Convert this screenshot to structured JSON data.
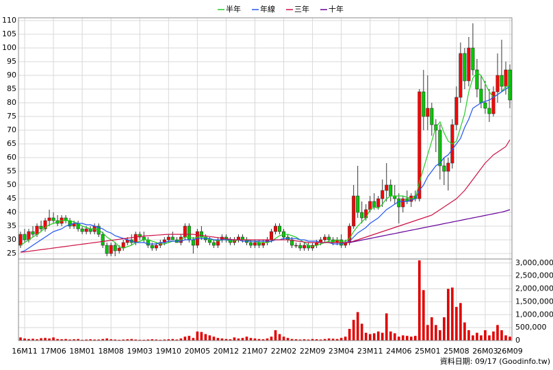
{
  "chart_data": [
    {
      "type": "candlestick",
      "categories": [
        null,
        "16M11",
        null,
        null,
        null,
        null,
        null,
        null,
        "17M06",
        null,
        null,
        null,
        null,
        null,
        null,
        "18M01",
        null,
        null,
        null,
        null,
        null,
        null,
        "18M08",
        null,
        null,
        null,
        null,
        null,
        null,
        "19M03",
        null,
        null,
        null,
        null,
        null,
        null,
        "19M10",
        null,
        null,
        null,
        null,
        null,
        null,
        "20M05",
        null,
        null,
        null,
        null,
        null,
        null,
        "20M12",
        null,
        null,
        null,
        null,
        null,
        null,
        "21M07",
        null,
        null,
        null,
        null,
        null,
        null,
        "22M02",
        null,
        null,
        null,
        null,
        null,
        null,
        "22M09",
        null,
        null,
        null,
        null,
        null,
        null,
        "23M04",
        null,
        null,
        null,
        null,
        null,
        null,
        "23M11",
        null,
        null,
        null,
        null,
        null,
        null,
        "24M06",
        null,
        null,
        null,
        null,
        null,
        null,
        "25M01",
        null,
        null,
        null,
        null,
        null,
        null,
        "25M08",
        null,
        null,
        null,
        null,
        null,
        null,
        "26M03",
        null,
        null,
        null,
        null,
        null,
        "26M09"
      ],
      "open": [
        28,
        32,
        30,
        33,
        32,
        35,
        34,
        37,
        38,
        37,
        36,
        38,
        37,
        35,
        36,
        34,
        33,
        34,
        33,
        35,
        32,
        28,
        25,
        28,
        26,
        27,
        29,
        30,
        29,
        32,
        31,
        30,
        28,
        27,
        28,
        29,
        30,
        31,
        30,
        29,
        31,
        35,
        30,
        28,
        33,
        31,
        30,
        29,
        28,
        30,
        31,
        30,
        29,
        30,
        31,
        30,
        29,
        28,
        29,
        28,
        29,
        30,
        33,
        35,
        33,
        31,
        30,
        28,
        28,
        27,
        28,
        27,
        28,
        29,
        30,
        31,
        30,
        29,
        30,
        28,
        29,
        35,
        46,
        40,
        38,
        41,
        44,
        42,
        45,
        48,
        50,
        46,
        45,
        42,
        45,
        44,
        46,
        45,
        84,
        75,
        78,
        72,
        70,
        57,
        55,
        58,
        72,
        82,
        98,
        88,
        100,
        92,
        85,
        80,
        78,
        76,
        84,
        90,
        86,
        92
      ],
      "high": [
        33,
        34,
        34,
        35,
        36,
        37,
        38,
        41,
        40,
        39,
        39,
        39,
        38,
        37,
        37,
        35,
        35,
        35,
        36,
        36,
        33,
        29,
        29,
        29,
        28,
        30,
        31,
        32,
        33,
        33,
        33,
        31,
        29,
        29,
        30,
        31,
        32,
        33,
        31,
        32,
        36,
        36,
        31,
        34,
        35,
        32,
        31,
        30,
        31,
        32,
        32,
        31,
        31,
        32,
        32,
        31,
        30,
        30,
        30,
        30,
        31,
        34,
        36,
        36,
        34,
        32,
        31,
        29,
        29,
        29,
        29,
        29,
        30,
        31,
        32,
        32,
        31,
        31,
        32,
        30,
        36,
        50,
        57,
        44,
        43,
        46,
        47,
        46,
        52,
        58,
        52,
        50,
        47,
        46,
        48,
        47,
        48,
        85,
        92,
        90,
        80,
        74,
        72,
        60,
        60,
        74,
        86,
        102,
        100,
        104,
        109,
        96,
        90,
        88,
        85,
        86,
        98,
        103,
        95,
        94
      ],
      "low": [
        27,
        29,
        29,
        31,
        31,
        33,
        33,
        35,
        36,
        35,
        35,
        36,
        34,
        34,
        33,
        32,
        32,
        32,
        32,
        31,
        27,
        24,
        24,
        24,
        25,
        26,
        28,
        28,
        28,
        30,
        29,
        27,
        26,
        26,
        27,
        28,
        29,
        30,
        29,
        28,
        30,
        29,
        25,
        27,
        30,
        29,
        28,
        27,
        27,
        29,
        29,
        28,
        28,
        29,
        29,
        28,
        27,
        27,
        27,
        27,
        28,
        29,
        32,
        32,
        30,
        29,
        27,
        27,
        26,
        26,
        26,
        26,
        27,
        28,
        29,
        29,
        28,
        28,
        27,
        27,
        28,
        34,
        38,
        36,
        37,
        40,
        41,
        41,
        42,
        44,
        44,
        43,
        36,
        40,
        43,
        42,
        44,
        44,
        70,
        70,
        68,
        62,
        52,
        50,
        48,
        56,
        70,
        80,
        85,
        86,
        90,
        82,
        78,
        76,
        73,
        75,
        80,
        84,
        83,
        78
      ],
      "close": [
        32,
        30,
        33,
        32,
        35,
        34,
        37,
        38,
        37,
        36,
        38,
        37,
        35,
        36,
        34,
        33,
        34,
        33,
        35,
        32,
        28,
        25,
        28,
        26,
        27,
        29,
        30,
        29,
        32,
        31,
        30,
        28,
        27,
        28,
        29,
        30,
        31,
        30,
        29,
        31,
        35,
        30,
        28,
        33,
        31,
        30,
        29,
        28,
        30,
        31,
        30,
        29,
        30,
        31,
        30,
        29,
        28,
        29,
        28,
        29,
        30,
        33,
        35,
        33,
        31,
        30,
        28,
        28,
        27,
        28,
        27,
        28,
        29,
        30,
        31,
        30,
        29,
        30,
        28,
        29,
        35,
        46,
        40,
        38,
        41,
        44,
        42,
        45,
        48,
        50,
        46,
        45,
        42,
        45,
        44,
        46,
        45,
        84,
        75,
        78,
        72,
        70,
        57,
        55,
        58,
        72,
        82,
        98,
        88,
        100,
        92,
        85,
        80,
        78,
        76,
        84,
        90,
        86,
        92,
        81
      ],
      "up_color": "#ff0000",
      "down_color": "#00c800",
      "series": [
        {
          "name": "半年",
          "color": "#22cc22",
          "values": [
            28,
            29,
            30,
            31,
            32,
            33,
            34.5,
            35.5,
            36,
            36.5,
            37,
            37,
            37,
            36.5,
            36,
            35,
            34.5,
            34,
            34,
            33.5,
            32.5,
            31,
            30,
            29,
            27.5,
            27,
            27.5,
            28,
            29,
            29.5,
            30,
            30,
            29.5,
            29,
            28.5,
            28.5,
            29,
            29.5,
            29.5,
            30,
            31,
            31,
            30.5,
            31,
            31,
            31,
            30,
            30,
            29.5,
            30,
            30,
            29.5,
            29.5,
            30,
            30,
            30,
            29.5,
            29.5,
            29,
            29,
            29,
            29.5,
            30.5,
            31.5,
            32,
            32,
            31.5,
            31,
            30,
            29,
            28,
            27.5,
            28,
            28.5,
            29,
            29.5,
            29.5,
            30,
            29.5,
            29.5,
            30.5,
            33,
            35,
            36.5,
            38,
            41,
            42,
            41.5,
            43,
            45,
            46,
            46,
            46,
            46,
            45.5,
            45,
            45,
            51,
            56,
            61,
            66,
            71,
            73,
            69,
            66,
            65,
            66,
            71,
            76,
            84,
            89,
            91,
            90,
            87,
            84,
            82,
            83,
            84,
            86,
            86
          ]
        },
        {
          "name": "年線",
          "color": "#2255ee",
          "values": [
            25.5,
            26,
            27,
            28,
            29,
            30,
            31,
            32,
            33,
            33.5,
            34,
            35,
            35.5,
            36,
            36,
            36,
            35.5,
            35.5,
            35,
            34.5,
            34,
            33,
            32.5,
            31.5,
            31,
            30.5,
            30,
            29.5,
            29,
            29,
            29,
            28.5,
            28.5,
            28.5,
            29,
            29,
            29.5,
            29.5,
            29.5,
            29.5,
            30,
            30,
            30,
            30.5,
            30.5,
            30.5,
            30.5,
            30,
            30,
            30,
            30,
            30,
            30,
            30,
            29.5,
            29.5,
            29.5,
            29.5,
            29.5,
            29.5,
            29.5,
            29.5,
            30,
            30,
            30.5,
            30.5,
            30.5,
            30.5,
            30,
            30,
            29.5,
            29.5,
            29.5,
            29,
            29,
            29,
            28.5,
            28.5,
            28.5,
            29,
            29.5,
            31,
            32.5,
            33.5,
            34.5,
            36,
            37,
            38,
            39.5,
            41,
            42,
            43,
            44,
            44,
            44,
            44.5,
            45,
            48,
            50,
            53,
            55,
            57,
            58,
            60,
            61,
            63,
            65,
            67,
            71,
            74,
            78,
            79,
            80,
            80.5,
            81,
            82,
            83,
            84,
            85,
            86
          ]
        },
        {
          "name": "三年",
          "color": "#cc1144",
          "values": [
            25.5,
            25.6,
            25.8,
            26,
            26.2,
            26.4,
            26.6,
            26.8,
            27,
            27.2,
            27.4,
            27.6,
            27.8,
            28,
            28.2,
            28.4,
            28.6,
            28.8,
            29,
            29.2,
            29.4,
            29.6,
            29.8,
            30,
            30.2,
            30.4,
            30.6,
            30.8,
            31,
            31.2,
            31.4,
            31.5,
            31.6,
            31.7,
            31.8,
            31.9,
            32,
            32,
            32,
            32,
            32,
            32,
            32,
            31.8,
            31.6,
            31.4,
            31.2,
            31,
            30.8,
            30.6,
            30.4,
            30.2,
            30,
            30,
            30,
            30,
            30,
            30,
            30,
            30,
            30,
            30,
            30,
            30,
            30,
            30,
            29.8,
            29.6,
            29.4,
            29.2,
            29,
            29,
            29,
            29,
            29,
            29,
            29,
            29,
            29,
            29,
            29,
            29.5,
            30,
            30.5,
            31,
            31.5,
            32,
            32.5,
            33,
            33.5,
            34,
            34.5,
            35,
            35.5,
            36,
            36.5,
            37,
            37.5,
            38,
            38.5,
            39,
            40,
            41,
            42,
            43,
            44,
            45,
            46.5,
            48,
            50,
            52,
            54,
            56,
            58,
            59.5,
            61,
            62,
            63,
            64,
            66.5
          ]
        },
        {
          "name": "十年",
          "color": "#660099",
          "values": [
            null,
            null,
            null,
            null,
            null,
            null,
            null,
            null,
            null,
            null,
            null,
            null,
            null,
            null,
            null,
            null,
            null,
            null,
            null,
            null,
            null,
            null,
            null,
            null,
            null,
            null,
            null,
            null,
            null,
            null,
            null,
            null,
            null,
            null,
            null,
            null,
            null,
            null,
            null,
            null,
            null,
            null,
            null,
            null,
            null,
            null,
            null,
            null,
            null,
            null,
            null,
            null,
            null,
            null,
            null,
            null,
            null,
            null,
            null,
            null,
            null,
            null,
            null,
            null,
            null,
            null,
            null,
            null,
            null,
            null,
            null,
            null,
            null,
            null,
            null,
            null,
            null,
            null,
            null,
            null,
            29,
            29.3,
            29.6,
            29.9,
            30.2,
            30.5,
            30.8,
            31.1,
            31.4,
            31.7,
            32,
            32.3,
            32.6,
            32.9,
            33.2,
            33.5,
            33.8,
            34.1,
            34.4,
            34.7,
            35,
            35.3,
            35.6,
            35.9,
            36.2,
            36.5,
            36.8,
            37.1,
            37.4,
            37.7,
            38,
            38.3,
            38.6,
            38.9,
            39.2,
            39.5,
            39.8,
            40.1,
            40.5,
            41
          ]
        }
      ],
      "ylim": [
        23,
        111
      ],
      "yticks": [
        25,
        30,
        35,
        40,
        45,
        50,
        55,
        60,
        65,
        70,
        75,
        80,
        85,
        90,
        95,
        100,
        105,
        110
      ],
      "grid": true,
      "legend": "top",
      "footer": "資料日期: 09/17 (Goodinfo.tw)"
    },
    {
      "type": "bar",
      "color": "#e00000",
      "values": [
        120000,
        80000,
        60000,
        70000,
        50000,
        90000,
        100000,
        80000,
        120000,
        60000,
        50000,
        60000,
        40000,
        50000,
        60000,
        30000,
        40000,
        50000,
        40000,
        40000,
        60000,
        80000,
        50000,
        40000,
        30000,
        40000,
        50000,
        60000,
        40000,
        30000,
        30000,
        40000,
        50000,
        40000,
        30000,
        40000,
        50000,
        60000,
        40000,
        80000,
        150000,
        180000,
        100000,
        350000,
        330000,
        250000,
        200000,
        150000,
        100000,
        80000,
        60000,
        50000,
        120000,
        80000,
        100000,
        150000,
        100000,
        80000,
        60000,
        50000,
        80000,
        150000,
        400000,
        250000,
        150000,
        100000,
        60000,
        50000,
        40000,
        50000,
        40000,
        60000,
        50000,
        40000,
        60000,
        80000,
        70000,
        60000,
        100000,
        150000,
        450000,
        800000,
        1100000,
        650000,
        300000,
        250000,
        280000,
        350000,
        300000,
        1050000,
        350000,
        280000,
        150000,
        200000,
        180000,
        150000,
        180000,
        3100000,
        1950000,
        600000,
        900000,
        600000,
        400000,
        900000,
        2000000,
        2050000,
        1300000,
        1450000,
        700000,
        400000,
        200000,
        300000,
        200000,
        400000,
        200000,
        350000,
        600000,
        400000,
        200000,
        150000
      ],
      "ylim": [
        0,
        3100000
      ],
      "yticks": [
        0,
        {
          "value": 500000,
          "label": "500,000"
        },
        {
          "value": 1000000,
          "label": "1,000,000"
        },
        {
          "value": 1500000,
          "label": "1,500,000"
        },
        {
          "value": 2000000,
          "label": "2,000,000"
        },
        {
          "value": 2500000,
          "label": "2,500,000"
        },
        {
          "value": 3000000,
          "label": "3,000,000"
        }
      ],
      "grid": true
    }
  ]
}
